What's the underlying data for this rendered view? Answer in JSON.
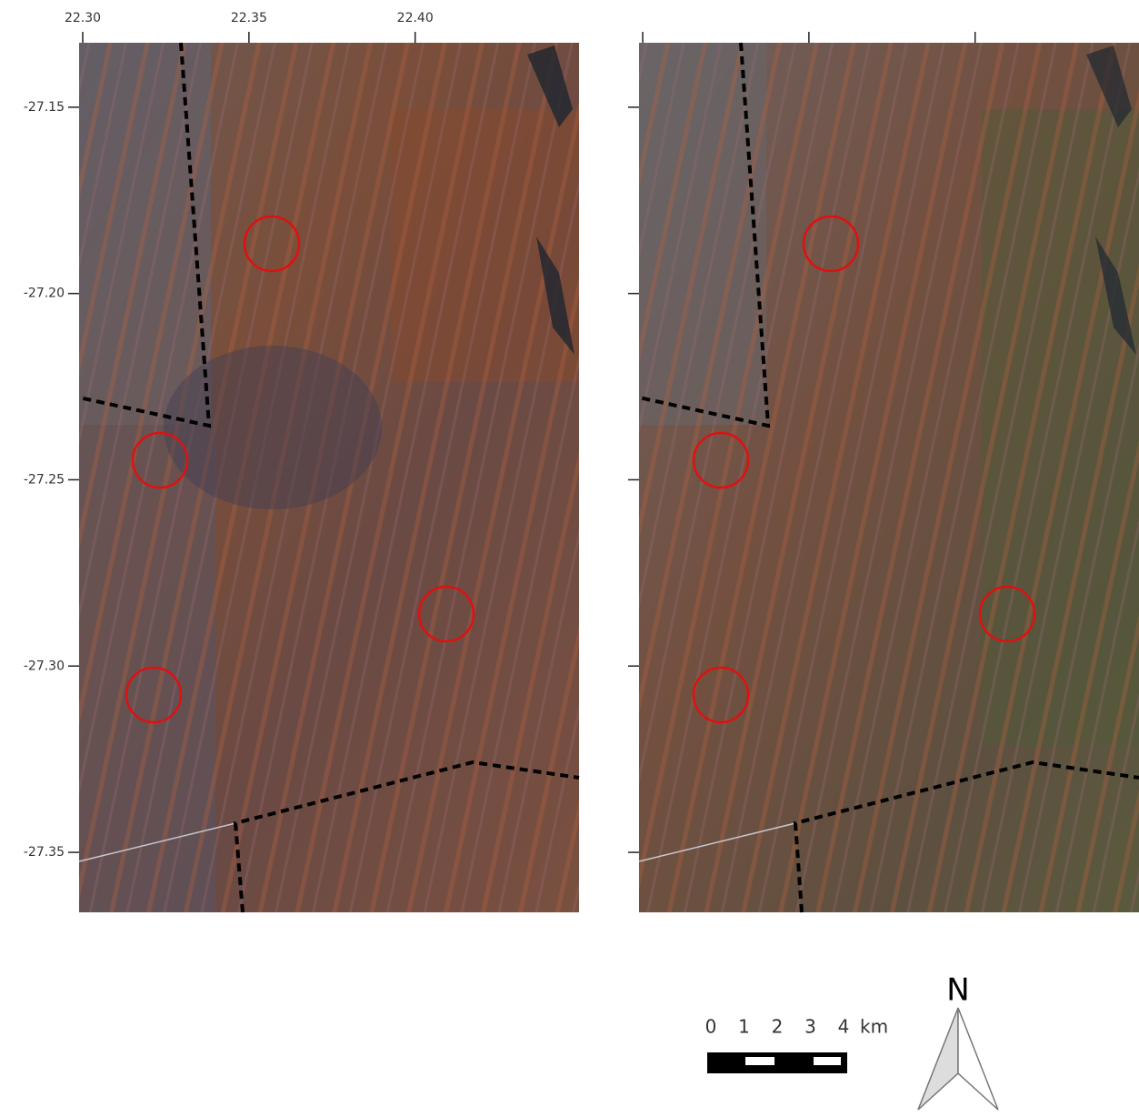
{
  "map": {
    "xlim": [
      22.2989,
      22.4493
    ],
    "ylim": [
      -27.3661,
      -27.1327
    ],
    "xticks": [
      {
        "value": 22.3,
        "label": "22.30"
      },
      {
        "value": 22.35,
        "label": "22.35"
      },
      {
        "value": 22.4,
        "label": "22.40"
      }
    ],
    "yticks": [
      {
        "value": -27.15,
        "label": "-27.15"
      },
      {
        "value": -27.2,
        "label": "-27.20"
      },
      {
        "value": -27.25,
        "label": "-27.25"
      },
      {
        "value": -27.3,
        "label": "-27.30"
      },
      {
        "value": -27.35,
        "label": "-27.35"
      }
    ]
  },
  "scale_bar": {
    "labels": [
      "0",
      "1",
      "2",
      "3",
      "4"
    ],
    "unit": "km"
  },
  "north_arrow": {
    "label": "N"
  }
}
